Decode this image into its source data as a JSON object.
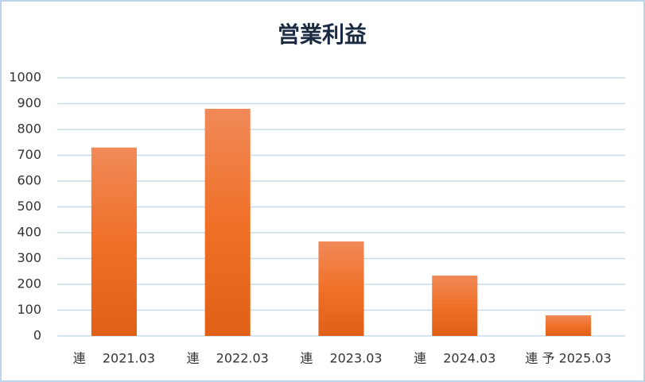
{
  "chart_data": {
    "type": "bar",
    "title": "営業利益",
    "categories": [
      "連　 2021.03",
      "連　 2022.03",
      "連　 2023.03",
      "連　 2024.03",
      "連 予 2025.03"
    ],
    "values": [
      730,
      880,
      366,
      234,
      80
    ],
    "color": "#f07a30",
    "ylim": [
      0,
      1000
    ],
    "yticks": [
      0,
      100,
      200,
      300,
      400,
      500,
      600,
      700,
      800,
      900,
      1000
    ],
    "grid": true
  }
}
